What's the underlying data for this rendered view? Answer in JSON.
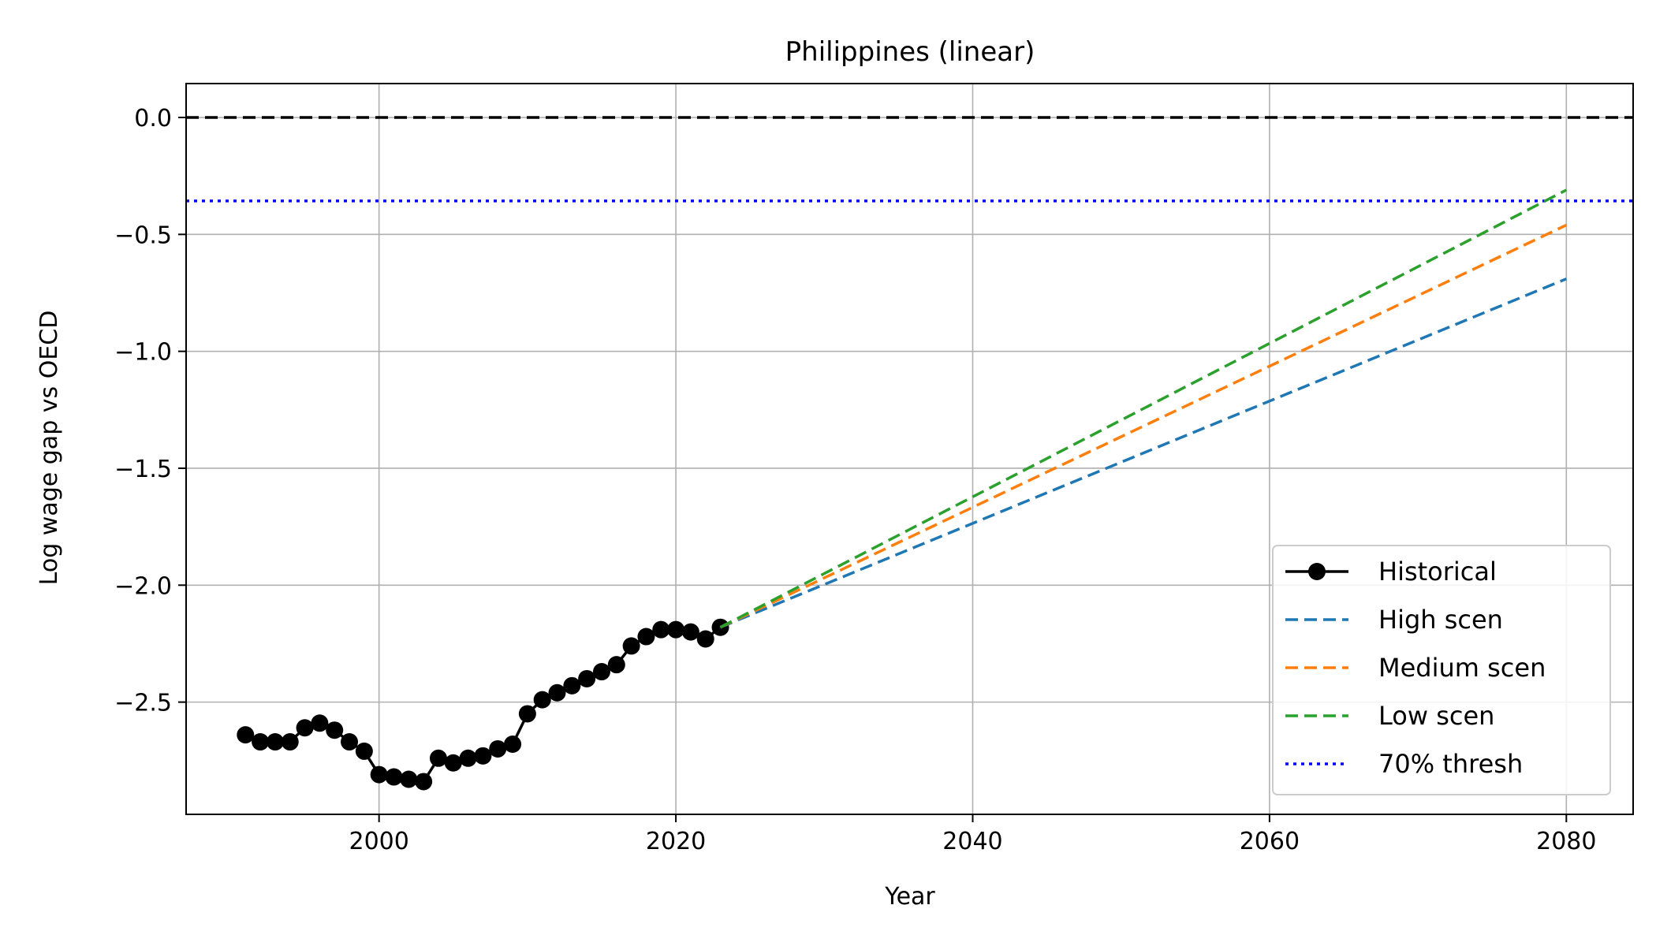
{
  "chart_data": {
    "type": "line",
    "title": "Philippines (linear)",
    "xlabel": "Year",
    "ylabel": "Log wage gap vs OECD",
    "xlim": [
      1987,
      2084.5
    ],
    "ylim": [
      -2.98,
      0.145
    ],
    "xticks": [
      2000,
      2020,
      2040,
      2060,
      2080
    ],
    "yticks": [
      0.0,
      -0.5,
      -1.0,
      -1.5,
      -2.0,
      -2.5
    ],
    "xtick_labels": [
      "2000",
      "2020",
      "2040",
      "2060",
      "2080"
    ],
    "ytick_labels": [
      "0.0",
      "−0.5",
      "−1.0",
      "−1.5",
      "−2.0",
      "−2.5"
    ],
    "grid": true,
    "legend_position": "lower-right",
    "series": [
      {
        "name": "Historical",
        "style": "solid-markers",
        "color": "#000000",
        "x": [
          1991,
          1992,
          1993,
          1994,
          1995,
          1996,
          1997,
          1998,
          1999,
          2000,
          2001,
          2002,
          2003,
          2004,
          2005,
          2006,
          2007,
          2008,
          2009,
          2010,
          2011,
          2012,
          2013,
          2014,
          2015,
          2016,
          2017,
          2018,
          2019,
          2020,
          2021,
          2022,
          2023
        ],
        "y": [
          -2.64,
          -2.67,
          -2.67,
          -2.67,
          -2.61,
          -2.59,
          -2.62,
          -2.67,
          -2.71,
          -2.81,
          -2.82,
          -2.83,
          -2.84,
          -2.74,
          -2.76,
          -2.74,
          -2.73,
          -2.7,
          -2.68,
          -2.55,
          -2.49,
          -2.46,
          -2.43,
          -2.4,
          -2.37,
          -2.34,
          -2.26,
          -2.22,
          -2.19,
          -2.19,
          -2.2,
          -2.23,
          -2.18
        ]
      },
      {
        "name": "High scen",
        "style": "dashed",
        "color": "#1f77b4",
        "x": [
          2023,
          2080
        ],
        "y": [
          -2.18,
          -0.69
        ]
      },
      {
        "name": "Medium scen",
        "style": "dashed",
        "color": "#ff7f0e",
        "x": [
          2023,
          2080
        ],
        "y": [
          -2.18,
          -0.46
        ]
      },
      {
        "name": "Low scen",
        "style": "dashed",
        "color": "#2ca02c",
        "x": [
          2023,
          2080
        ],
        "y": [
          -2.18,
          -0.31
        ]
      }
    ],
    "reference_lines": [
      {
        "y": 0.0,
        "style": "dashed",
        "color": "#000000"
      },
      {
        "name": "70% thresh",
        "y": -0.357,
        "style": "dotted",
        "color": "#0000ff"
      }
    ],
    "legend": [
      "Historical",
      "High scen",
      "Medium scen",
      "Low scen",
      "70% thresh"
    ]
  }
}
